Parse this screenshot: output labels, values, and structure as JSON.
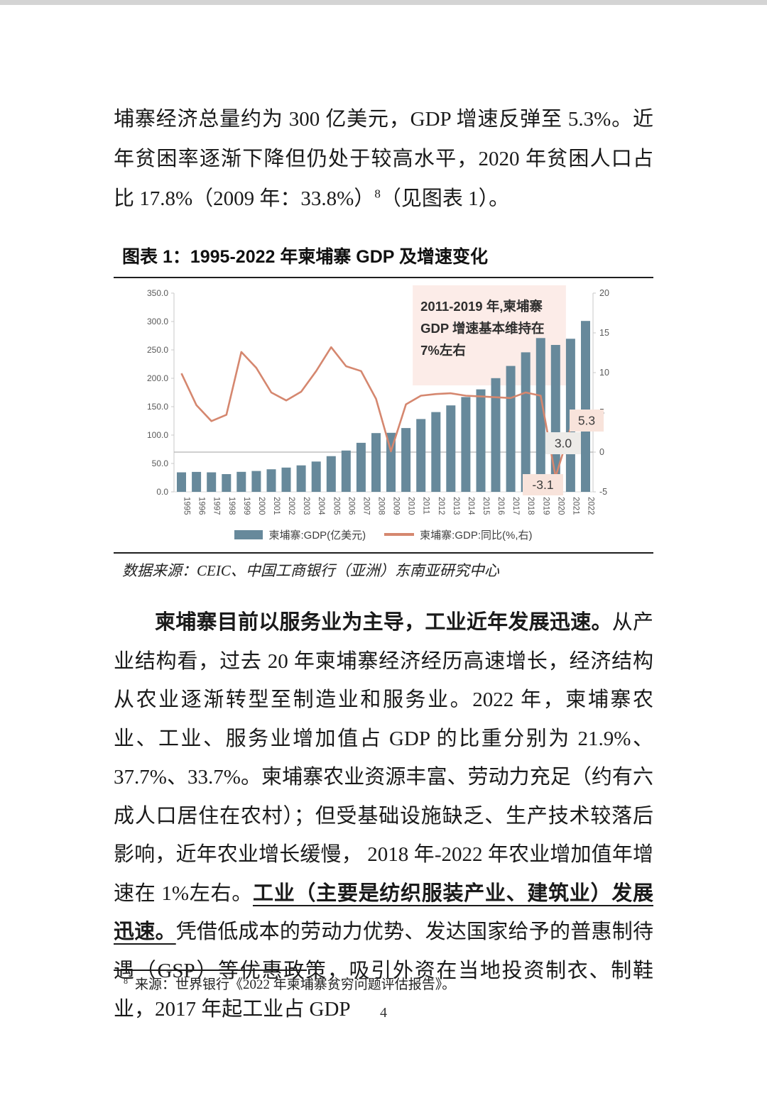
{
  "page": {
    "number": "4"
  },
  "intro": {
    "text1": "埔寨经济总量约为 300 亿美元，GDP 增速反弹至 5.3%。近年贫困率逐渐下降但仍处于较高水平，2020 年贫困人口占比 17.8%（2009 年：33.8%）",
    "footnote_ref": "8",
    "text2": "（见图表 1）。"
  },
  "figure": {
    "title": "图表 1：1995-2022 年柬埔寨 GDP 及增速变化",
    "source": "数据来源：CEIC、中国工商银行（亚洲）东南亚研究中心"
  },
  "body": {
    "lead_bold": "柬埔寨目前以服务业为主导，工业近年发展迅速。",
    "normal1": "从产业结构看，过去 20 年柬埔寨经济经历高速增长，经济结构从农业逐渐转型至制造业和服务业。2022 年，柬埔寨农业、工业、服务业增加值占 GDP 的比重分别为 21.9%、37.7%、33.7%。柬埔寨农业资源丰富、劳动力充足（约有六成人口居住在农村）；但受基础设施缺乏、生产技术较落后影响，近年农业增长缓慢， 2018 年-2022 年农业增加值年增速在 1%左右。",
    "bold_underline": "工业（主要是纺织服装产业、建筑业）发展迅速。",
    "normal2": "凭借低成本的劳动力优势、发达国家给予的普惠制待遇（GSP）等优惠政策，吸引外资在当地投资制衣、制鞋业，2017 年起工业占 GDP"
  },
  "footnote": {
    "ref": "8",
    "text": "来源：世界银行《2022 年柬埔寨贫穷问题评估报告》。"
  },
  "chart_data": {
    "type": "bar",
    "subtype": "combo bar + line, dual axis",
    "title": "1995-2022 年柬埔寨 GDP 及增速变化",
    "categories": [
      "1995",
      "1996",
      "1997",
      "1998",
      "1999",
      "2000",
      "2001",
      "2002",
      "2003",
      "2004",
      "2005",
      "2006",
      "2007",
      "2008",
      "2009",
      "2010",
      "2011",
      "2012",
      "2013",
      "2014",
      "2015",
      "2016",
      "2017",
      "2018",
      "2019",
      "2020",
      "2021",
      "2022"
    ],
    "series": [
      {
        "name": "柬埔寨:GDP(亿美元)",
        "axis": "left",
        "type": "bar",
        "values": [
          34.4,
          35.1,
          34.4,
          31.2,
          35.2,
          36.8,
          39.8,
          42.8,
          46.6,
          53.4,
          62.9,
          72.7,
          86.4,
          103.5,
          104.0,
          112.4,
          128.3,
          140.5,
          152.3,
          167.0,
          180.5,
          200.2,
          221.8,
          245.7,
          270.9,
          258.7,
          269.6,
          301.0
        ]
      },
      {
        "name": "柬埔寨:GDP:同比(%,右)",
        "axis": "right",
        "type": "line",
        "values": [
          9.9,
          5.9,
          3.9,
          4.7,
          12.6,
          10.6,
          7.5,
          6.5,
          7.6,
          10.2,
          13.2,
          10.8,
          10.2,
          6.7,
          0.1,
          6.0,
          7.1,
          7.3,
          7.4,
          7.1,
          7.0,
          6.9,
          6.8,
          7.5,
          7.1,
          -3.1,
          3.0,
          5.3
        ]
      }
    ],
    "left_axis": {
      "min": 0,
      "max": 350,
      "step": 50,
      "tick_format": "one_decimal"
    },
    "right_axis": {
      "min": -5,
      "max": 20,
      "step": 5
    },
    "legend": [
      "柬埔寨:GDP(亿美元)",
      "柬埔寨:GDP:同比(%,右)"
    ],
    "legend_position": "bottom",
    "grid": false,
    "zero_line_right_axis": 0,
    "annotation_lines": [
      "2011-2019 年,柬埔寨",
      "GDP 增速基本维持在",
      "7%左右"
    ],
    "annotation_band_years": [
      "2011",
      "2020"
    ],
    "point_labels": [
      {
        "year": "2020",
        "text": "-3.1",
        "bg": "pink"
      },
      {
        "year": "2021",
        "text": "3.0",
        "bg": "gray"
      },
      {
        "year": "2022",
        "text": "5.3",
        "bg": "pink"
      }
    ],
    "colors": {
      "bar": "#67899b",
      "line": "#d5876f",
      "annotation_bg": "#fcece8",
      "label_pink": "#f8e3db",
      "label_gray": "#edebe8",
      "zero_line": "#b3b3b3",
      "axis_line": "#c9c9c9",
      "tick_text": "#595959",
      "annotation_text": "#2e2e2e"
    }
  }
}
